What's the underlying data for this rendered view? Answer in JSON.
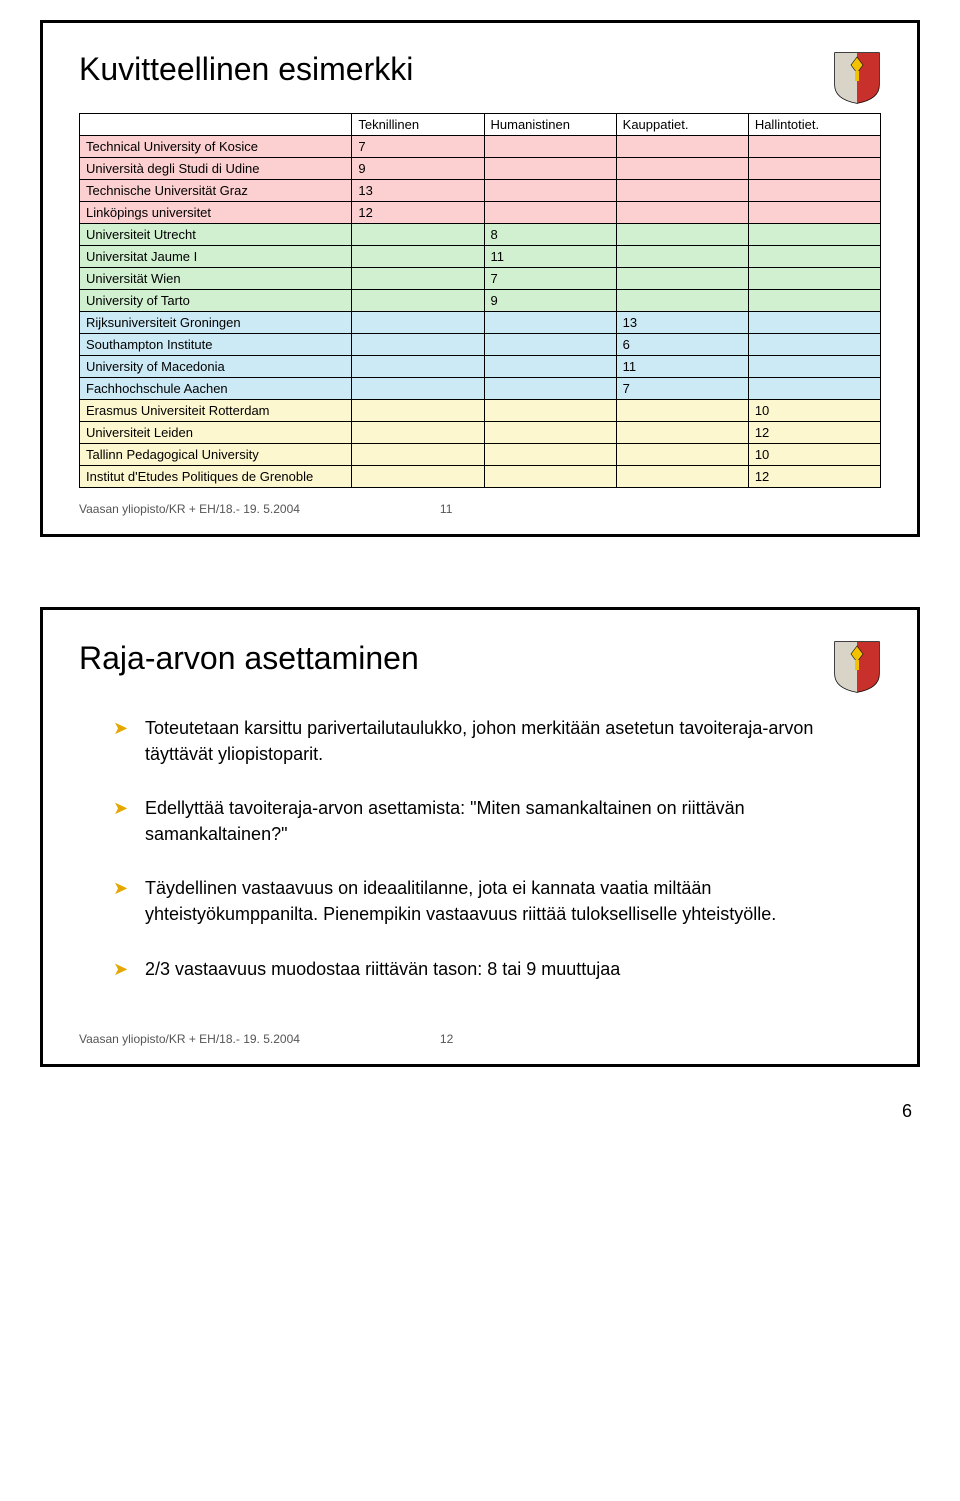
{
  "slide1": {
    "title": "Kuvitteellinen  esimerkki",
    "footer_left": "Vaasan yliopisto/KR + EH/18.- 19. 5.2004",
    "footer_page": "11",
    "headers": [
      "Teknillinen",
      "Humanistinen",
      "Kauppatiet.",
      "Hallintotiet."
    ],
    "row_colors": {
      "pink": "#fccfd0",
      "green": "#d0f0d0",
      "blue": "#cceaf5",
      "yellow": "#fdf7cf"
    },
    "rows": [
      {
        "name": "Technical University of Kosice",
        "vals": [
          "7",
          "",
          "",
          ""
        ],
        "color": "pink"
      },
      {
        "name": "Università degli Studi di Udine",
        "vals": [
          "9",
          "",
          "",
          ""
        ],
        "color": "pink"
      },
      {
        "name": "Technische Universität Graz",
        "vals": [
          "13",
          "",
          "",
          ""
        ],
        "color": "pink"
      },
      {
        "name": "Linköpings universitet",
        "vals": [
          "12",
          "",
          "",
          ""
        ],
        "color": "pink"
      },
      {
        "name": "Universiteit Utrecht",
        "vals": [
          "",
          "8",
          "",
          ""
        ],
        "color": "green"
      },
      {
        "name": "Universitat Jaume I",
        "vals": [
          "",
          "11",
          "",
          ""
        ],
        "color": "green"
      },
      {
        "name": "Universität Wien",
        "vals": [
          "",
          "7",
          "",
          ""
        ],
        "color": "green"
      },
      {
        "name": "University of Tarto",
        "vals": [
          "",
          "9",
          "",
          ""
        ],
        "color": "green"
      },
      {
        "name": "Rijksuniversiteit Groningen",
        "vals": [
          "",
          "",
          "13",
          ""
        ],
        "color": "blue"
      },
      {
        "name": "Southampton Institute",
        "vals": [
          "",
          "",
          "6",
          ""
        ],
        "color": "blue"
      },
      {
        "name": "University of Macedonia",
        "vals": [
          "",
          "",
          "11",
          ""
        ],
        "color": "blue"
      },
      {
        "name": "Fachhochschule Aachen",
        "vals": [
          "",
          "",
          "7",
          ""
        ],
        "color": "blue"
      },
      {
        "name": "Erasmus Universiteit Rotterdam",
        "vals": [
          "",
          "",
          "",
          "10"
        ],
        "color": "yellow"
      },
      {
        "name": "Universiteit Leiden",
        "vals": [
          "",
          "",
          "",
          "12"
        ],
        "color": "yellow"
      },
      {
        "name": "Tallinn Pedagogical University",
        "vals": [
          "",
          "",
          "",
          "10"
        ],
        "color": "yellow"
      },
      {
        "name": "Institut d'Etudes Politiques de Grenoble",
        "vals": [
          "",
          "",
          "",
          "12"
        ],
        "color": "yellow"
      }
    ]
  },
  "slide2": {
    "title": "Raja-arvon asettaminen",
    "bullets": [
      "Toteutetaan karsittu parivertailutaulukko, johon merkitään asetetun tavoiteraja-arvon täyttävät yliopistoparit.",
      "Edellyttää tavoiteraja-arvon asettamista: \"Miten samankaltainen on riittävän samankaltainen?\"",
      "Täydellinen vastaavuus on ideaalitilanne, jota ei kannata vaatia miltään yhteistyökumppanilta. Pienempikin vastaavuus riittää tulokselliselle yhteistyölle.",
      "2/3 vastaavuus muodostaa riittävän tason:  8 tai 9 muuttujaa"
    ],
    "footer_left": "Vaasan yliopisto/KR + EH/18.- 19. 5.2004",
    "footer_page": "12"
  },
  "page_number": "6",
  "shield_colors": {
    "bg": "#ffffff",
    "left": "#d8d4c8",
    "right": "#c7302b",
    "accent": "#f2c200"
  }
}
